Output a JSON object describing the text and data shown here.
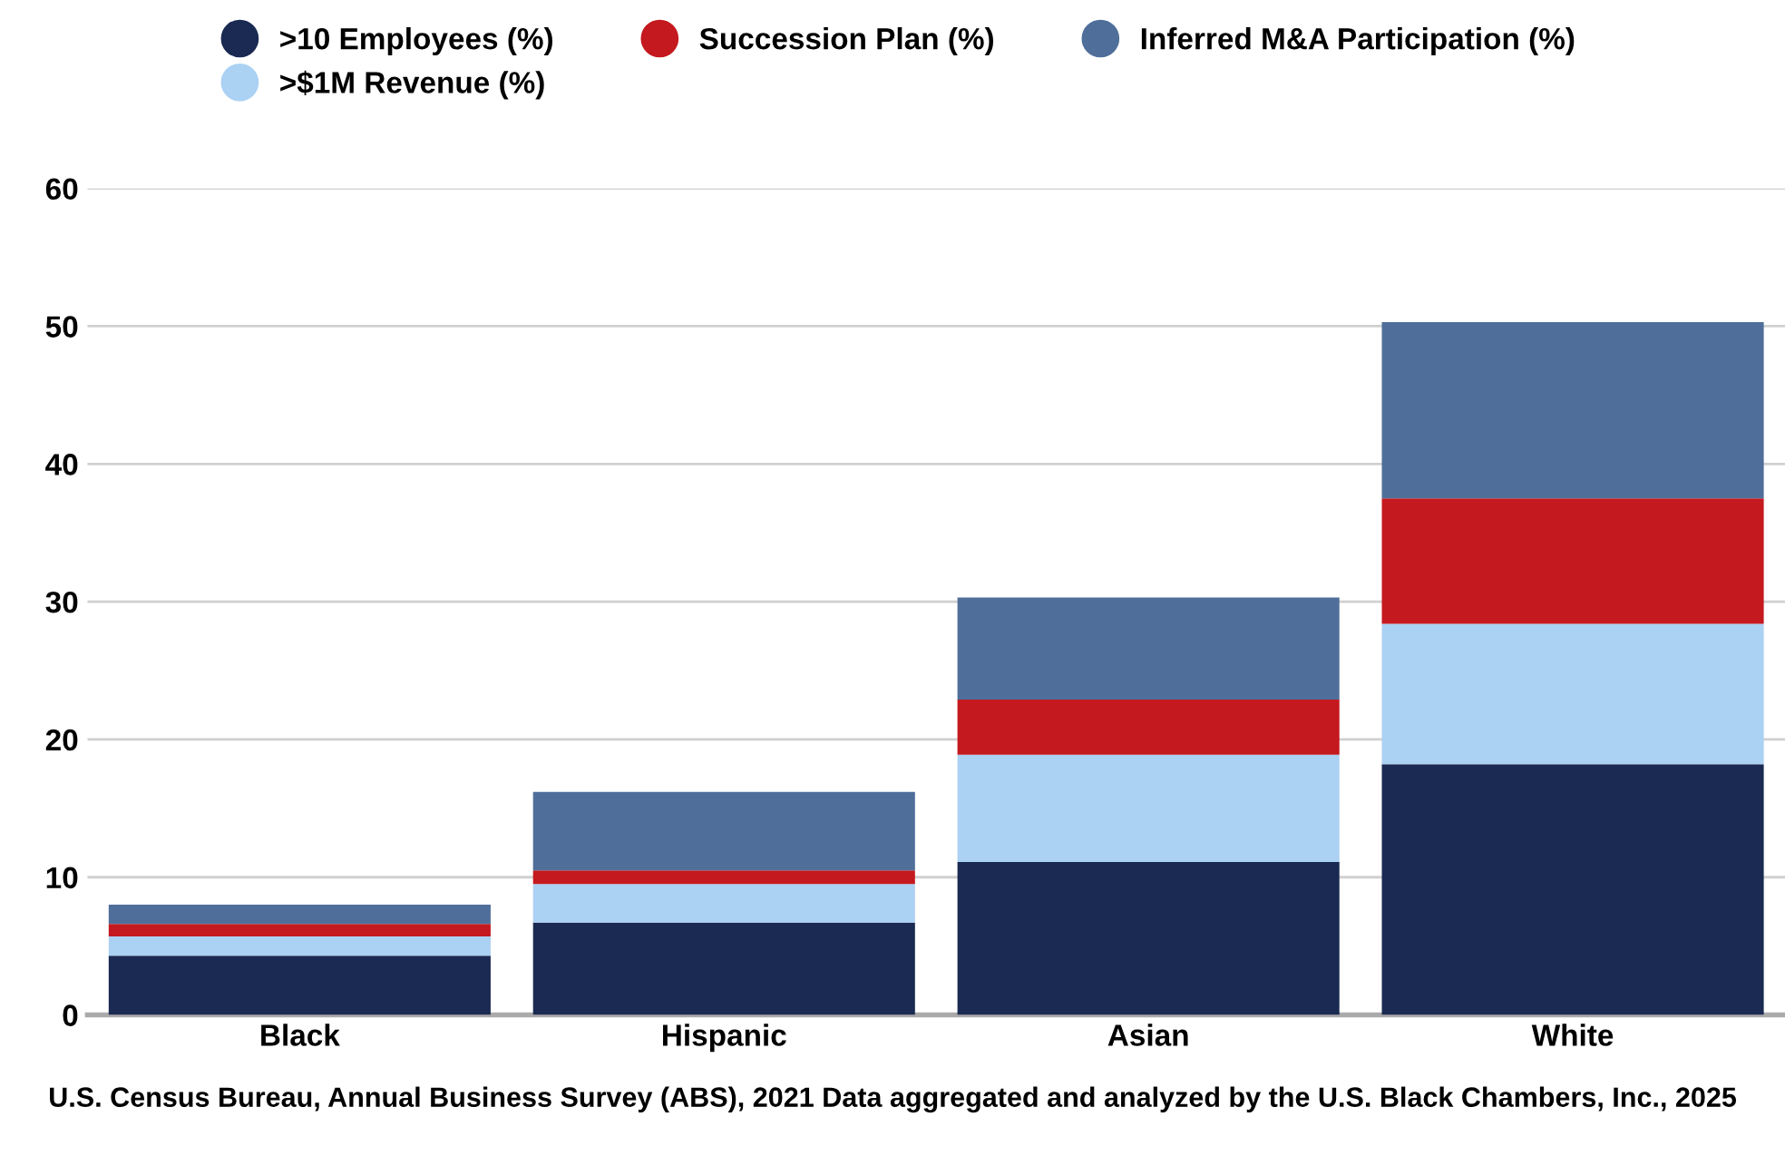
{
  "chart_data": {
    "type": "bar",
    "stacked": true,
    "categories": [
      "Black",
      "Hispanic",
      "Asian",
      "White"
    ],
    "series": [
      {
        "name": ">10 Employees (%)",
        "color": "#1a2a52",
        "values": [
          4.3,
          6.7,
          11.1,
          18.2
        ]
      },
      {
        "name": ">$1M Revenue (%)",
        "color": "#abd1f3",
        "values": [
          1.4,
          2.8,
          7.8,
          10.2
        ]
      },
      {
        "name": "Succession Plan (%)",
        "color": "#c4191f",
        "values": [
          0.9,
          1.0,
          4.0,
          9.1
        ]
      },
      {
        "name": "Inferred M&A Participation (%)",
        "color": "#4f6f9a",
        "values": [
          1.4,
          5.7,
          7.4,
          12.8
        ]
      }
    ],
    "ylim": [
      0,
      60
    ],
    "yticks": [
      0,
      10,
      20,
      30,
      40,
      50,
      60
    ],
    "grid": "y",
    "legend": "top",
    "annotations": [
      "U.S. Census Bureau, Annual Business Survey (ABS), 2021 Data aggregated and analyzed by the U.S. Black Chambers, Inc., 2025"
    ]
  }
}
